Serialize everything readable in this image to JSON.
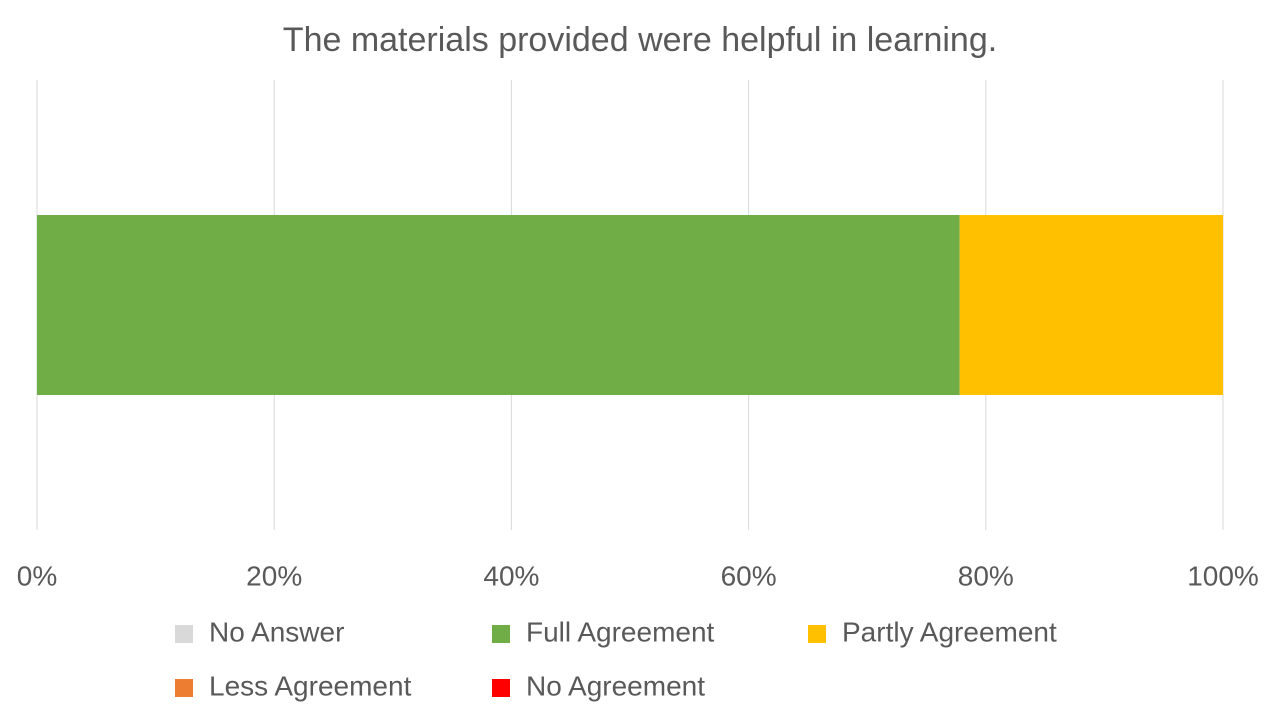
{
  "chart_data": {
    "type": "stacked_bar_horizontal",
    "title": "The materials provided were helpful in learning.",
    "categories": [
      null
    ],
    "series": [
      {
        "name": "No Answer",
        "color": "#d9d9d9",
        "values": [
          0
        ]
      },
      {
        "name": "Full Agreement",
        "color": "#70ad47",
        "values": [
          77.8
        ]
      },
      {
        "name": "Partly Agreement",
        "color": "#ffc000",
        "values": [
          22.2
        ]
      },
      {
        "name": "Less Agreement",
        "color": "#ed7d31",
        "values": [
          0
        ]
      },
      {
        "name": "No Agreement",
        "color": "#ff0000",
        "values": [
          0
        ]
      }
    ],
    "xlim": [
      0,
      100
    ],
    "xticks": [
      {
        "value": 0,
        "label": "0%"
      },
      {
        "value": 20,
        "label": "20%"
      },
      {
        "value": 40,
        "label": "40%"
      },
      {
        "value": 60,
        "label": "60%"
      },
      {
        "value": 80,
        "label": "80%"
      },
      {
        "value": 100,
        "label": "100%"
      }
    ],
    "grid": true,
    "legend": "bottom"
  }
}
